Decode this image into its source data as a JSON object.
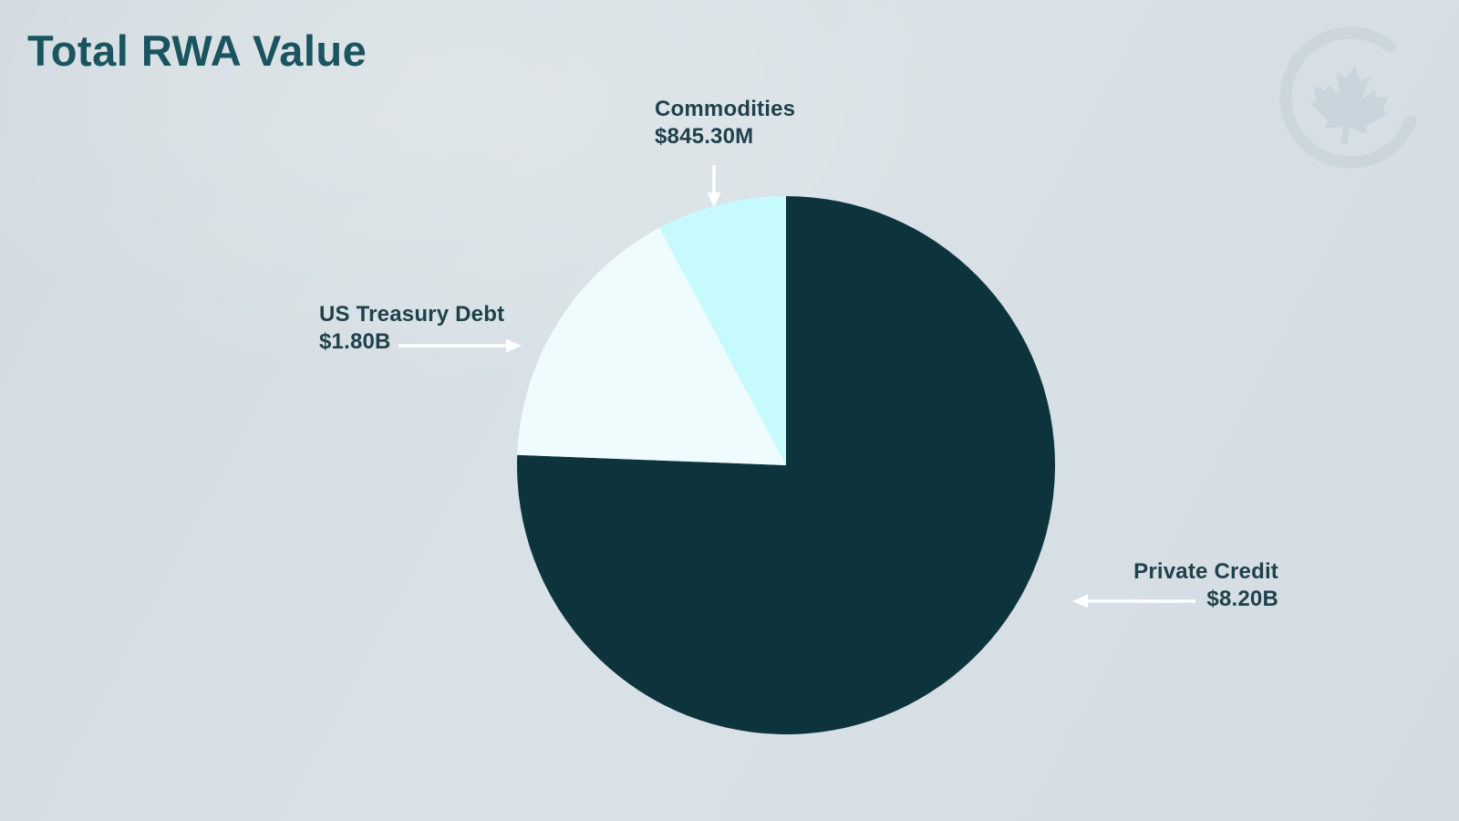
{
  "page": {
    "title": "Total RWA Value"
  },
  "colors": {
    "background": "#d6dfe3",
    "title": "#19545f",
    "label_text": "#20414c",
    "arrow": "#ffffff",
    "watermark": "#c2ced7"
  },
  "watermark": {
    "description": "faint maple leaf inside open circle"
  },
  "chart_data": {
    "type": "pie",
    "title": "Total RWA Value",
    "start_angle_deg": 0,
    "direction": "clockwise",
    "legend_position": "callouts",
    "segments": [
      {
        "label": "Private Credit",
        "value_billions": 8.2,
        "value_display": "$8.20B",
        "color": "#0d343c",
        "callout_side": "right"
      },
      {
        "label": "US Treasury Debt",
        "value_billions": 1.8,
        "value_display": "$1.80B",
        "color": "#eefcfd",
        "callout_side": "left"
      },
      {
        "label": "Commodities",
        "value_billions": 0.8453,
        "value_display": "$845.30M",
        "color": "#c7fafd",
        "callout_side": "top"
      }
    ]
  }
}
